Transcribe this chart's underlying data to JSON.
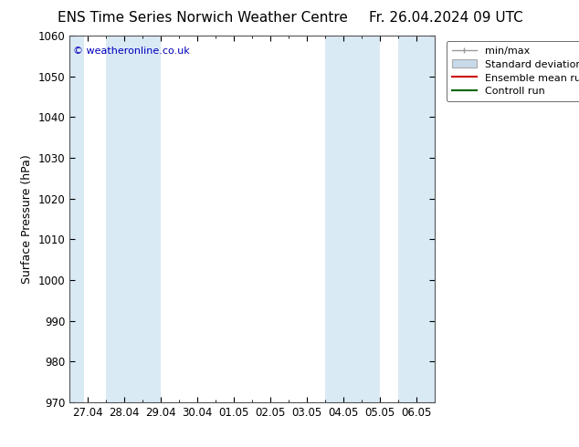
{
  "title_left": "ENS Time Series Norwich Weather Centre",
  "title_right": "Fr. 26.04.2024 09 UTC",
  "ylabel": "Surface Pressure (hPa)",
  "ylim": [
    970,
    1060
  ],
  "yticks": [
    970,
    980,
    990,
    1000,
    1010,
    1020,
    1030,
    1040,
    1050,
    1060
  ],
  "x_labels": [
    "27.04",
    "28.04",
    "29.04",
    "30.04",
    "01.05",
    "02.05",
    "03.05",
    "04.05",
    "05.05",
    "06.05"
  ],
  "x_positions": [
    0,
    1,
    2,
    3,
    4,
    5,
    6,
    7,
    8,
    9
  ],
  "band_color": "#daeaf5",
  "bg_color": "#ffffff",
  "copyright_text": "© weatheronline.co.uk",
  "copyright_color": "#0000bb",
  "title_fontsize": 11,
  "axis_fontsize": 9,
  "tick_fontsize": 8.5,
  "legend_fontsize": 8,
  "fig_width": 6.34,
  "fig_height": 4.9,
  "dpi": 100,
  "minmax_color": "#999999",
  "std_facecolor": "#c8daea",
  "std_edgecolor": "#aaaaaa",
  "ensemble_color": "#cc0000",
  "control_color": "#006600"
}
